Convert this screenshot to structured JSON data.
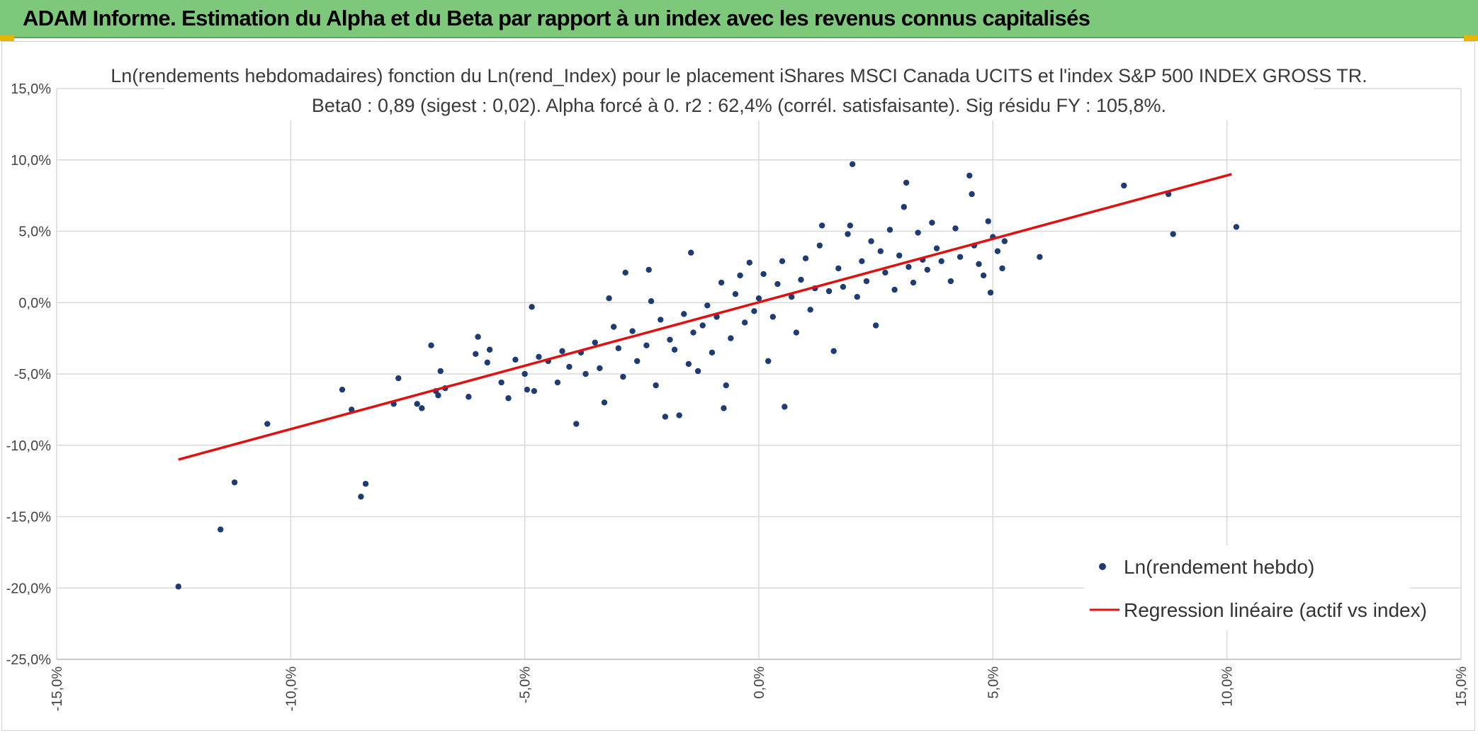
{
  "header": {
    "title": "ADAM Informe. Estimation du Alpha et du Beta par rapport à un index avec les revenus connus capitalisés"
  },
  "colors": {
    "banner": "#7dc87a",
    "points": "#1f3b73",
    "regression": "#e01010",
    "grid": "#d9d9d9"
  },
  "chart_data": {
    "type": "scatter",
    "title": "Ln(rendements hebdomadaires) fonction du Ln(rend_Index) pour le placement iShares MSCI Canada UCITS et l'index S&P 500 INDEX GROSS TR.",
    "subtitle": "Beta0 : 0,89 (sigest : 0,02). Alpha forcé à 0. r2 : 62,4% (corrél. satisfaisante). Sig résidu FY : 105,8%.",
    "xlabel": "",
    "ylabel": "",
    "xlim": [
      -15,
      15
    ],
    "ylim": [
      -25,
      15
    ],
    "x_ticks": [
      "-15,0%",
      "-10,0%",
      "-5,0%",
      "0,0%",
      "5,0%",
      "10,0%",
      "15,0%"
    ],
    "y_ticks": [
      "15,0%",
      "10,0%",
      "5,0%",
      "0,0%",
      "-5,0%",
      "-10,0%",
      "-15,0%",
      "-20,0%",
      "-25,0%"
    ],
    "grid": true,
    "legend_position": "bottom-right",
    "series": [
      {
        "name": "Ln(rendement hebdo)",
        "kind": "scatter",
        "points": [
          [
            -12.4,
            -19.9
          ],
          [
            -11.5,
            -15.9
          ],
          [
            -11.2,
            -12.6
          ],
          [
            -10.5,
            -8.5
          ],
          [
            -8.9,
            -6.1
          ],
          [
            -8.7,
            -7.5
          ],
          [
            -8.5,
            -13.6
          ],
          [
            -8.4,
            -12.7
          ],
          [
            -7.8,
            -7.1
          ],
          [
            -7.7,
            -5.3
          ],
          [
            -7.3,
            -7.1
          ],
          [
            -7.2,
            -7.4
          ],
          [
            -7.0,
            -3.0
          ],
          [
            -6.9,
            -6.2
          ],
          [
            -6.85,
            -6.5
          ],
          [
            -6.8,
            -4.8
          ],
          [
            -6.7,
            -6.0
          ],
          [
            -6.2,
            -6.6
          ],
          [
            -6.05,
            -3.6
          ],
          [
            -6.0,
            -2.4
          ],
          [
            -5.8,
            -4.2
          ],
          [
            -5.75,
            -3.3
          ],
          [
            -5.5,
            -5.6
          ],
          [
            -5.35,
            -6.7
          ],
          [
            -5.2,
            -4.0
          ],
          [
            -5.0,
            -5.0
          ],
          [
            -4.95,
            -6.1
          ],
          [
            -4.8,
            -6.2
          ],
          [
            -4.85,
            -0.3
          ],
          [
            -4.7,
            -3.8
          ],
          [
            -4.5,
            -4.1
          ],
          [
            -4.3,
            -5.6
          ],
          [
            -4.2,
            -3.4
          ],
          [
            -4.05,
            -4.5
          ],
          [
            -3.9,
            -8.5
          ],
          [
            -3.8,
            -3.5
          ],
          [
            -3.7,
            -5.0
          ],
          [
            -3.5,
            -2.8
          ],
          [
            -3.4,
            -4.6
          ],
          [
            -3.3,
            -7.0
          ],
          [
            -3.2,
            0.3
          ],
          [
            -3.1,
            -1.7
          ],
          [
            -3.0,
            -3.2
          ],
          [
            -2.9,
            -5.2
          ],
          [
            -2.85,
            2.1
          ],
          [
            -2.7,
            -2.0
          ],
          [
            -2.6,
            -4.1
          ],
          [
            -2.4,
            -3.0
          ],
          [
            -2.3,
            0.1
          ],
          [
            -2.2,
            -5.8
          ],
          [
            -2.35,
            2.3
          ],
          [
            -2.1,
            -1.2
          ],
          [
            -2.0,
            -8.0
          ],
          [
            -1.9,
            -2.6
          ],
          [
            -1.8,
            -3.3
          ],
          [
            -1.7,
            -7.9
          ],
          [
            -1.6,
            -0.8
          ],
          [
            -1.5,
            -4.3
          ],
          [
            -1.45,
            3.5
          ],
          [
            -1.4,
            -2.1
          ],
          [
            -1.3,
            -4.8
          ],
          [
            -1.2,
            -1.6
          ],
          [
            -1.1,
            -0.2
          ],
          [
            -1.0,
            -3.5
          ],
          [
            -0.9,
            -1.0
          ],
          [
            -0.8,
            1.4
          ],
          [
            -0.7,
            -5.8
          ],
          [
            -0.75,
            -7.4
          ],
          [
            -0.6,
            -2.5
          ],
          [
            -0.5,
            0.6
          ],
          [
            -0.4,
            1.9
          ],
          [
            -0.3,
            -1.4
          ],
          [
            -0.2,
            2.8
          ],
          [
            -0.1,
            -0.6
          ],
          [
            0.0,
            0.3
          ],
          [
            0.1,
            2.0
          ],
          [
            0.2,
            -4.1
          ],
          [
            0.3,
            -1.0
          ],
          [
            0.4,
            1.3
          ],
          [
            0.5,
            2.9
          ],
          [
            0.55,
            -7.3
          ],
          [
            0.7,
            0.4
          ],
          [
            0.8,
            -2.1
          ],
          [
            0.9,
            1.6
          ],
          [
            1.0,
            3.1
          ],
          [
            1.1,
            -0.5
          ],
          [
            1.2,
            1.0
          ],
          [
            1.3,
            4.0
          ],
          [
            1.35,
            5.4
          ],
          [
            1.5,
            0.8
          ],
          [
            1.6,
            -3.4
          ],
          [
            1.7,
            2.4
          ],
          [
            1.8,
            1.1
          ],
          [
            1.9,
            4.8
          ],
          [
            1.95,
            5.4
          ],
          [
            2.0,
            9.7
          ],
          [
            2.1,
            0.4
          ],
          [
            2.2,
            2.9
          ],
          [
            2.3,
            1.5
          ],
          [
            2.4,
            4.3
          ],
          [
            2.5,
            -1.6
          ],
          [
            2.6,
            3.6
          ],
          [
            2.7,
            2.1
          ],
          [
            2.8,
            5.1
          ],
          [
            2.9,
            0.9
          ],
          [
            3.0,
            3.3
          ],
          [
            3.1,
            6.7
          ],
          [
            3.15,
            8.4
          ],
          [
            3.2,
            2.5
          ],
          [
            3.3,
            1.4
          ],
          [
            3.4,
            4.9
          ],
          [
            3.5,
            3.0
          ],
          [
            3.6,
            2.3
          ],
          [
            3.7,
            5.6
          ],
          [
            3.8,
            3.8
          ],
          [
            3.9,
            2.9
          ],
          [
            4.1,
            1.5
          ],
          [
            4.2,
            5.2
          ],
          [
            4.3,
            3.2
          ],
          [
            4.5,
            8.9
          ],
          [
            4.55,
            7.6
          ],
          [
            4.6,
            4.0
          ],
          [
            4.7,
            2.7
          ],
          [
            4.8,
            1.9
          ],
          [
            4.9,
            5.7
          ],
          [
            4.95,
            0.7
          ],
          [
            5.0,
            4.6
          ],
          [
            5.1,
            3.6
          ],
          [
            5.2,
            2.4
          ],
          [
            5.25,
            4.3
          ],
          [
            6.0,
            3.2
          ],
          [
            7.8,
            8.2
          ],
          [
            8.75,
            7.6
          ],
          [
            8.85,
            4.8
          ],
          [
            10.2,
            5.3
          ]
        ]
      },
      {
        "name": "Regression linéaire (actif vs index)",
        "kind": "line",
        "points": [
          [
            -12.4,
            -11.0
          ],
          [
            10.1,
            9.0
          ]
        ]
      }
    ]
  }
}
